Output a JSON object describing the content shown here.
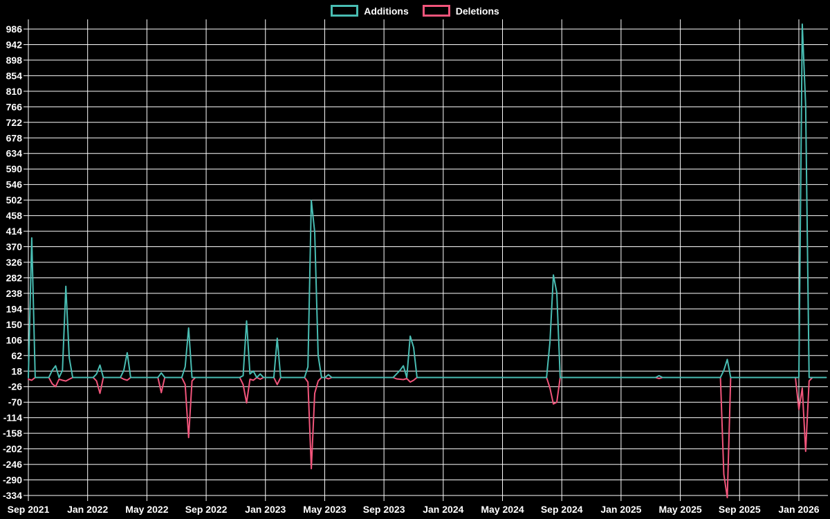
{
  "legend": {
    "position": "top-center",
    "items": [
      {
        "label": "Additions",
        "color": "#49bdb3"
      },
      {
        "label": "Deletions",
        "color": "#f2557b"
      }
    ]
  },
  "chart_data": {
    "type": "line",
    "title": "",
    "xlabel": "",
    "ylabel": "",
    "grid": true,
    "style": {
      "background": "#000000",
      "grid_color": "#ffffff",
      "text_color": "#ffffff"
    },
    "x_ticks": [
      "Sep 2021",
      "Jan 2022",
      "May 2022",
      "Sep 2022",
      "Jan 2023",
      "May 2023",
      "Sep 2023",
      "Jan 2024",
      "May 2024",
      "Sep 2024",
      "Jan 2025",
      "May 2025",
      "Sep 2025",
      "Jan 2026"
    ],
    "y_ticks": [
      986,
      942,
      898,
      854,
      810,
      766,
      722,
      678,
      634,
      590,
      546,
      502,
      458,
      414,
      370,
      326,
      282,
      238,
      194,
      150,
      106,
      62,
      18,
      -26,
      -70,
      -114,
      -158,
      -202,
      -246,
      -290,
      -334
    ],
    "axes": {
      "y_min": -334,
      "y_max": 986,
      "y_step": 44,
      "x_unit": "week",
      "total_weeks": 234,
      "weeks_between_first_last_tick": 226
    },
    "series": [
      {
        "name": "Additions",
        "color": "#49bdb3",
        "default_value": 0,
        "points_sparse": {
          "1": 395,
          "7": 20,
          "8": 33,
          "10": 20,
          "11": 258,
          "12": 56,
          "20": 10,
          "21": 35,
          "28": 20,
          "29": 70,
          "39": 13,
          "46": 30,
          "47": 140,
          "63": 5,
          "64": 160,
          "65": 10,
          "66": 18,
          "68": 10,
          "73": 111,
          "82": 30,
          "83": 501,
          "84": 411,
          "85": 62,
          "88": 8,
          "108": 10,
          "109": 20,
          "110": 33,
          "112": 117,
          "113": 85,
          "153": 100,
          "154": 290,
          "155": 240,
          "185": 5,
          "204": 20,
          "205": 51,
          "227": 1000,
          "228": 770
        }
      },
      {
        "name": "Deletions",
        "color": "#f2557b",
        "default_value": 0,
        "points_sparse": {
          "0": -5,
          "1": -8,
          "7": -18,
          "8": -26,
          "9": -5,
          "10": -8,
          "11": -10,
          "12": -5,
          "20": -10,
          "21": -45,
          "28": -5,
          "29": -8,
          "39": -43,
          "46": -20,
          "47": -170,
          "48": -10,
          "63": -20,
          "64": -72,
          "65": -5,
          "66": -8,
          "68": -5,
          "73": -20,
          "82": -13,
          "83": -258,
          "84": -45,
          "85": -10,
          "88": -4,
          "108": -4,
          "109": -5,
          "110": -6,
          "111": -3,
          "112": -13,
          "113": -8,
          "153": -30,
          "154": -75,
          "155": -70,
          "185": -3,
          "204": -274,
          "205": -340,
          "226": -91,
          "227": -30,
          "228": -209,
          "229": -10
        }
      }
    ]
  }
}
